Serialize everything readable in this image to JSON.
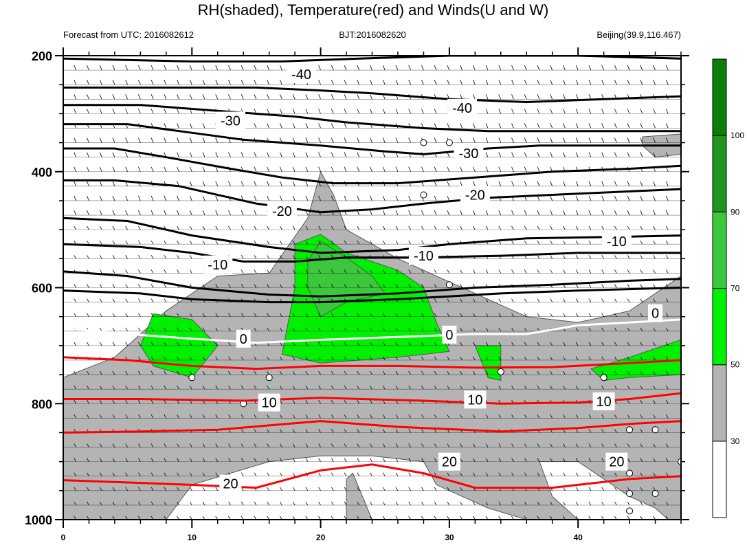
{
  "header": {
    "title": "RH(shaded), Temperature(red) and Winds(U and W)",
    "left_string": "Forecast from UTC: 2016082612",
    "center_string": "BJT:2016082620",
    "right_string": "Beijing(39.9,116.467)"
  },
  "colors": {
    "rh_30_50": "#b4b4b4",
    "rh_50_70": "#00f000",
    "rh_70_90": "#3cc83c",
    "rh_90_100": "#1e961e",
    "rh_above_100": "#0a7d0a",
    "temperature_warm": "#ff0000",
    "temperature_cold": "#000000",
    "freezing_line": "#ffffff",
    "wind_barb": "#000000"
  },
  "chart_data": {
    "type": "heatmap",
    "title": "RH(shaded), Temperature(red) and Winds(U and W)",
    "xlabel": "",
    "ylabel": "",
    "xlim": [
      0,
      48
    ],
    "ylim": [
      200,
      1000
    ],
    "y_reversed": true,
    "x_ticks": [
      0,
      10,
      20,
      30,
      40
    ],
    "x_tick_labels": [
      "0",
      "10",
      "20",
      "30",
      "40"
    ],
    "y_ticks": [
      200,
      400,
      600,
      800,
      1000
    ],
    "y_tick_labels": [
      "200",
      "400",
      "600",
      "800",
      "1000"
    ],
    "grid": false,
    "legend": "right",
    "colorbar": {
      "levels": [
        30,
        50,
        70,
        90,
        100
      ],
      "labels": [
        "30",
        "50",
        "70",
        "90",
        "100"
      ],
      "colors": [
        "#ffffff",
        "#b4b4b4",
        "#00f000",
        "#3cc83c",
        "#1e961e",
        "#0a7d0a"
      ]
    },
    "temperature_contours": [
      {
        "value": -40,
        "label": "-40",
        "color": "#000000",
        "points": [
          [
            0,
            205
          ],
          [
            10,
            210
          ],
          [
            17,
            210
          ],
          [
            23,
            205
          ],
          [
            30,
            200
          ],
          [
            40,
            200
          ],
          [
            48,
            205
          ]
        ]
      },
      {
        "value": -40,
        "label": "-40",
        "color": "#000000",
        "points": [
          [
            0,
            255
          ],
          [
            8,
            255
          ],
          [
            15,
            255
          ],
          [
            20,
            260
          ],
          [
            24,
            265
          ],
          [
            30,
            275
          ],
          [
            36,
            280
          ],
          [
            42,
            275
          ],
          [
            48,
            270
          ]
        ]
      },
      {
        "value": -30,
        "label": "-30",
        "color": "#000000",
        "points": [
          [
            0,
            285
          ],
          [
            6,
            285
          ],
          [
            12,
            295
          ],
          [
            18,
            305
          ],
          [
            22,
            315
          ],
          [
            28,
            325
          ],
          [
            33,
            330
          ],
          [
            40,
            330
          ],
          [
            48,
            330
          ]
        ]
      },
      {
        "value": -30,
        "label": "-30",
        "color": "#000000",
        "points": [
          [
            0,
            318
          ],
          [
            5,
            318
          ],
          [
            9,
            330
          ],
          [
            14,
            345
          ],
          [
            20,
            355
          ],
          [
            25,
            365
          ],
          [
            28,
            370
          ],
          [
            33,
            360
          ],
          [
            37,
            355
          ],
          [
            43,
            355
          ],
          [
            48,
            355
          ]
        ]
      },
      {
        "value": -20,
        "label": "-20",
        "color": "#000000",
        "points": [
          [
            0,
            360
          ],
          [
            4,
            360
          ],
          [
            8,
            375
          ],
          [
            13,
            395
          ],
          [
            17,
            410
          ],
          [
            21,
            420
          ],
          [
            26,
            420
          ],
          [
            32,
            410
          ],
          [
            38,
            400
          ],
          [
            44,
            395
          ],
          [
            48,
            390
          ]
        ]
      },
      {
        "value": -20,
        "label": "-20",
        "color": "#000000",
        "points": [
          [
            0,
            415
          ],
          [
            4,
            415
          ],
          [
            9,
            425
          ],
          [
            15,
            455
          ],
          [
            20,
            470
          ],
          [
            24,
            465
          ],
          [
            28,
            455
          ],
          [
            33,
            445
          ],
          [
            40,
            438
          ],
          [
            48,
            430
          ]
        ]
      },
      {
        "value": -10,
        "label": "-10",
        "color": "#000000",
        "points": [
          [
            0,
            480
          ],
          [
            5,
            485
          ],
          [
            10,
            510
          ],
          [
            16,
            530
          ],
          [
            20,
            540
          ],
          [
            26,
            535
          ],
          [
            30,
            525
          ],
          [
            36,
            515
          ],
          [
            44,
            512
          ],
          [
            48,
            510
          ]
        ]
      },
      {
        "value": -10,
        "label": "-10",
        "color": "#000000",
        "points": [
          [
            0,
            525
          ],
          [
            6,
            530
          ],
          [
            10,
            540
          ],
          [
            14,
            555
          ],
          [
            18,
            555
          ],
          [
            22,
            548
          ],
          [
            28,
            548
          ],
          [
            34,
            545
          ],
          [
            40,
            540
          ],
          [
            48,
            540
          ]
        ]
      },
      {
        "value": -10,
        "label": "-10",
        "color": "#000000",
        "points": [
          [
            0,
            572
          ],
          [
            5,
            580
          ],
          [
            10,
            600
          ],
          [
            16,
            612
          ],
          [
            20,
            615
          ],
          [
            26,
            610
          ],
          [
            32,
            600
          ],
          [
            38,
            595
          ],
          [
            44,
            588
          ],
          [
            48,
            585
          ]
        ]
      },
      {
        "value": 0,
        "label": "0",
        "color": "#000000",
        "points": [
          [
            0,
            605
          ],
          [
            6,
            610
          ],
          [
            10,
            620
          ],
          [
            16,
            625
          ],
          [
            20,
            625
          ],
          [
            26,
            620
          ],
          [
            34,
            610
          ],
          [
            40,
            605
          ],
          [
            48,
            600
          ]
        ]
      },
      {
        "value": 10,
        "label": "10",
        "color": "#ff0000",
        "points": [
          [
            0,
            720
          ],
          [
            5,
            725
          ],
          [
            10,
            735
          ],
          [
            15,
            740
          ],
          [
            20,
            735
          ],
          [
            26,
            735
          ],
          [
            32,
            738
          ],
          [
            38,
            737
          ],
          [
            44,
            730
          ],
          [
            48,
            725
          ]
        ]
      },
      {
        "value": 10,
        "label": "10",
        "color": "#ff0000",
        "points": [
          [
            0,
            792
          ],
          [
            6,
            792
          ],
          [
            14,
            795
          ],
          [
            20,
            790
          ],
          [
            28,
            795
          ],
          [
            34,
            800
          ],
          [
            40,
            798
          ],
          [
            44,
            792
          ],
          [
            48,
            782
          ]
        ]
      },
      {
        "value": 20,
        "label": "20",
        "color": "#ff0000",
        "points": [
          [
            0,
            850
          ],
          [
            6,
            848
          ],
          [
            12,
            845
          ],
          [
            20,
            830
          ],
          [
            26,
            840
          ],
          [
            34,
            848
          ],
          [
            40,
            842
          ],
          [
            44,
            835
          ],
          [
            48,
            830
          ]
        ]
      },
      {
        "value": 20,
        "label": "20",
        "color": "#ff0000",
        "points": [
          [
            0,
            932
          ],
          [
            4,
            935
          ],
          [
            10,
            940
          ],
          [
            15,
            945
          ],
          [
            20,
            915
          ],
          [
            24,
            905
          ],
          [
            28,
            920
          ],
          [
            32,
            945
          ],
          [
            38,
            945
          ],
          [
            44,
            930
          ],
          [
            48,
            925
          ]
        ]
      }
    ],
    "freezing_line": {
      "value": 0,
      "label": "0",
      "color": "#ffffff",
      "points": [
        [
          0,
          670
        ],
        [
          5,
          680
        ],
        [
          10,
          688
        ],
        [
          15,
          695
        ],
        [
          20,
          690
        ],
        [
          26,
          685
        ],
        [
          32,
          680
        ],
        [
          36,
          680
        ],
        [
          40,
          665
        ],
        [
          44,
          660
        ],
        [
          48,
          655
        ]
      ]
    },
    "contour_labels": [
      {
        "text": "-40",
        "x": 18.5,
        "y": 232
      },
      {
        "text": "-40",
        "x": 31,
        "y": 290
      },
      {
        "text": "-30",
        "x": 13,
        "y": 312
      },
      {
        "text": "-30",
        "x": 31.5,
        "y": 368
      },
      {
        "text": "-20",
        "x": 17,
        "y": 468
      },
      {
        "text": "-20",
        "x": 32,
        "y": 440
      },
      {
        "text": "-10",
        "x": 12,
        "y": 560
      },
      {
        "text": "-10",
        "x": 28,
        "y": 545
      },
      {
        "text": "-10",
        "x": 43,
        "y": 520
      },
      {
        "text": "0",
        "x": 14,
        "y": 688
      },
      {
        "text": "0",
        "x": 30,
        "y": 681
      },
      {
        "text": "0",
        "x": 46,
        "y": 644
      },
      {
        "text": "10",
        "x": 16,
        "y": 798
      },
      {
        "text": "10",
        "x": 32,
        "y": 793
      },
      {
        "text": "10",
        "x": 42,
        "y": 796
      },
      {
        "text": "20",
        "x": 13,
        "y": 938
      },
      {
        "text": "20",
        "x": 30,
        "y": 900
      },
      {
        "text": "20",
        "x": 43,
        "y": 900
      }
    ],
    "rh_regions": [
      {
        "band": "rh_30_50",
        "points": [
          [
            0,
            755
          ],
          [
            4,
            720
          ],
          [
            8,
            640
          ],
          [
            12,
            580
          ],
          [
            16,
            575
          ],
          [
            19,
            480
          ],
          [
            20,
            400
          ],
          [
            21,
            440
          ],
          [
            22,
            500
          ],
          [
            26,
            550
          ],
          [
            30,
            590
          ],
          [
            34,
            630
          ],
          [
            36,
            650
          ],
          [
            40,
            660
          ],
          [
            44,
            640
          ],
          [
            48,
            580
          ],
          [
            48,
            1000
          ],
          [
            47,
            1000
          ],
          [
            46,
            980
          ],
          [
            44,
            960
          ],
          [
            40,
            900
          ],
          [
            37,
            900
          ],
          [
            38,
            960
          ],
          [
            40,
            1000
          ],
          [
            36,
            1000
          ],
          [
            33,
            980
          ],
          [
            29,
            940
          ],
          [
            28,
            900
          ],
          [
            24,
            890
          ],
          [
            20,
            890
          ],
          [
            16,
            900
          ],
          [
            10,
            940
          ],
          [
            8,
            1000
          ],
          [
            0,
            1000
          ]
        ]
      },
      {
        "band": "rh_30_50",
        "points": [
          [
            22,
            1000
          ],
          [
            22,
            930
          ],
          [
            22.5,
            920
          ],
          [
            24,
            1000
          ]
        ]
      },
      {
        "band": "rh_30_50",
        "points": [
          [
            45,
            340
          ],
          [
            48,
            335
          ],
          [
            48,
            370
          ],
          [
            46,
            375
          ],
          [
            45,
            355
          ]
        ]
      },
      {
        "band": "rh_50_70",
        "points": [
          [
            7,
            645
          ],
          [
            10,
            655
          ],
          [
            12,
            700
          ],
          [
            10,
            755
          ],
          [
            7,
            735
          ],
          [
            6,
            700
          ]
        ]
      },
      {
        "band": "rh_50_70",
        "points": [
          [
            18,
            525
          ],
          [
            20,
            508
          ],
          [
            22,
            540
          ],
          [
            26,
            570
          ],
          [
            28,
            600
          ],
          [
            29,
            660
          ],
          [
            30,
            710
          ],
          [
            26,
            720
          ],
          [
            20,
            730
          ],
          [
            17,
            715
          ],
          [
            18,
            600
          ]
        ]
      },
      {
        "band": "rh_50_70",
        "points": [
          [
            32,
            700
          ],
          [
            34,
            700
          ],
          [
            34,
            760
          ],
          [
            33,
            755
          ]
        ]
      },
      {
        "band": "rh_50_70",
        "points": [
          [
            41,
            740
          ],
          [
            44,
            720
          ],
          [
            48,
            690
          ],
          [
            48,
            750
          ],
          [
            44,
            755
          ],
          [
            42,
            760
          ]
        ]
      },
      {
        "band": "rh_70_90",
        "points": [
          [
            19,
            555
          ],
          [
            20,
            520
          ],
          [
            22,
            548
          ],
          [
            24,
            580
          ],
          [
            25,
            610
          ],
          [
            22,
            625
          ],
          [
            20,
            650
          ],
          [
            19,
            600
          ]
        ]
      }
    ],
    "wind_levels": [
      225,
      250,
      275,
      300,
      325,
      350,
      375,
      400,
      425,
      450,
      475,
      500,
      525,
      550,
      575,
      600,
      625,
      650,
      675,
      700,
      725,
      750,
      775,
      800,
      825,
      850,
      875,
      900,
      925,
      950,
      975,
      1000
    ],
    "wind_hours": [
      1,
      2,
      3,
      4,
      5,
      6,
      7,
      8,
      9,
      10,
      11,
      12,
      13,
      14,
      15,
      16,
      17,
      18,
      19,
      20,
      21,
      22,
      23,
      24,
      25,
      26,
      27,
      28,
      29,
      30,
      31,
      32,
      33,
      34,
      35,
      36,
      37,
      38,
      39,
      40,
      41,
      42,
      43,
      44,
      45,
      46,
      47
    ],
    "calm_points": [
      [
        28,
        350
      ],
      [
        30,
        350
      ],
      [
        28,
        440
      ],
      [
        30,
        595
      ],
      [
        34,
        745
      ],
      [
        10,
        755
      ],
      [
        16,
        755
      ],
      [
        14,
        800
      ],
      [
        42,
        755
      ],
      [
        44,
        845
      ],
      [
        46,
        845
      ],
      [
        44,
        920
      ],
      [
        44,
        955
      ],
      [
        46,
        955
      ],
      [
        44,
        985
      ],
      [
        48,
        900
      ]
    ]
  }
}
